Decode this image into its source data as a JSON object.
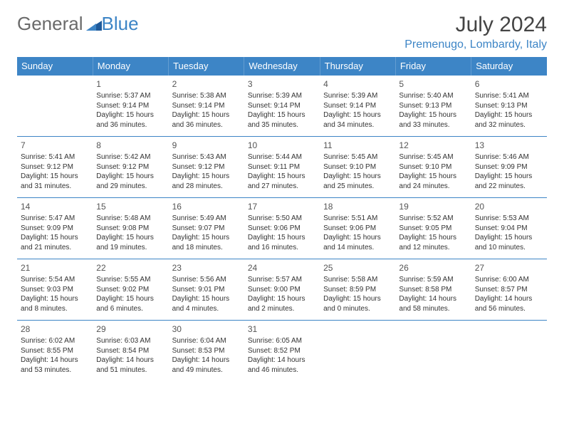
{
  "logo": {
    "text1": "General",
    "text2": "Blue",
    "text1_color": "#6a6a6a",
    "text2_color": "#3d85c6",
    "triangle_color": "#1f5a9a"
  },
  "title": "July 2024",
  "location": "Premenugo, Lombardy, Italy",
  "colors": {
    "header_bg": "#3d85c6",
    "header_text": "#ffffff",
    "border": "#3d85c6"
  },
  "day_headers": [
    "Sunday",
    "Monday",
    "Tuesday",
    "Wednesday",
    "Thursday",
    "Friday",
    "Saturday"
  ],
  "weeks": [
    [
      null,
      {
        "n": "1",
        "sr": "Sunrise: 5:37 AM",
        "ss": "Sunset: 9:14 PM",
        "dl": "Daylight: 15 hours and 36 minutes."
      },
      {
        "n": "2",
        "sr": "Sunrise: 5:38 AM",
        "ss": "Sunset: 9:14 PM",
        "dl": "Daylight: 15 hours and 36 minutes."
      },
      {
        "n": "3",
        "sr": "Sunrise: 5:39 AM",
        "ss": "Sunset: 9:14 PM",
        "dl": "Daylight: 15 hours and 35 minutes."
      },
      {
        "n": "4",
        "sr": "Sunrise: 5:39 AM",
        "ss": "Sunset: 9:14 PM",
        "dl": "Daylight: 15 hours and 34 minutes."
      },
      {
        "n": "5",
        "sr": "Sunrise: 5:40 AM",
        "ss": "Sunset: 9:13 PM",
        "dl": "Daylight: 15 hours and 33 minutes."
      },
      {
        "n": "6",
        "sr": "Sunrise: 5:41 AM",
        "ss": "Sunset: 9:13 PM",
        "dl": "Daylight: 15 hours and 32 minutes."
      }
    ],
    [
      {
        "n": "7",
        "sr": "Sunrise: 5:41 AM",
        "ss": "Sunset: 9:12 PM",
        "dl": "Daylight: 15 hours and 31 minutes."
      },
      {
        "n": "8",
        "sr": "Sunrise: 5:42 AM",
        "ss": "Sunset: 9:12 PM",
        "dl": "Daylight: 15 hours and 29 minutes."
      },
      {
        "n": "9",
        "sr": "Sunrise: 5:43 AM",
        "ss": "Sunset: 9:12 PM",
        "dl": "Daylight: 15 hours and 28 minutes."
      },
      {
        "n": "10",
        "sr": "Sunrise: 5:44 AM",
        "ss": "Sunset: 9:11 PM",
        "dl": "Daylight: 15 hours and 27 minutes."
      },
      {
        "n": "11",
        "sr": "Sunrise: 5:45 AM",
        "ss": "Sunset: 9:10 PM",
        "dl": "Daylight: 15 hours and 25 minutes."
      },
      {
        "n": "12",
        "sr": "Sunrise: 5:45 AM",
        "ss": "Sunset: 9:10 PM",
        "dl": "Daylight: 15 hours and 24 minutes."
      },
      {
        "n": "13",
        "sr": "Sunrise: 5:46 AM",
        "ss": "Sunset: 9:09 PM",
        "dl": "Daylight: 15 hours and 22 minutes."
      }
    ],
    [
      {
        "n": "14",
        "sr": "Sunrise: 5:47 AM",
        "ss": "Sunset: 9:09 PM",
        "dl": "Daylight: 15 hours and 21 minutes."
      },
      {
        "n": "15",
        "sr": "Sunrise: 5:48 AM",
        "ss": "Sunset: 9:08 PM",
        "dl": "Daylight: 15 hours and 19 minutes."
      },
      {
        "n": "16",
        "sr": "Sunrise: 5:49 AM",
        "ss": "Sunset: 9:07 PM",
        "dl": "Daylight: 15 hours and 18 minutes."
      },
      {
        "n": "17",
        "sr": "Sunrise: 5:50 AM",
        "ss": "Sunset: 9:06 PM",
        "dl": "Daylight: 15 hours and 16 minutes."
      },
      {
        "n": "18",
        "sr": "Sunrise: 5:51 AM",
        "ss": "Sunset: 9:06 PM",
        "dl": "Daylight: 15 hours and 14 minutes."
      },
      {
        "n": "19",
        "sr": "Sunrise: 5:52 AM",
        "ss": "Sunset: 9:05 PM",
        "dl": "Daylight: 15 hours and 12 minutes."
      },
      {
        "n": "20",
        "sr": "Sunrise: 5:53 AM",
        "ss": "Sunset: 9:04 PM",
        "dl": "Daylight: 15 hours and 10 minutes."
      }
    ],
    [
      {
        "n": "21",
        "sr": "Sunrise: 5:54 AM",
        "ss": "Sunset: 9:03 PM",
        "dl": "Daylight: 15 hours and 8 minutes."
      },
      {
        "n": "22",
        "sr": "Sunrise: 5:55 AM",
        "ss": "Sunset: 9:02 PM",
        "dl": "Daylight: 15 hours and 6 minutes."
      },
      {
        "n": "23",
        "sr": "Sunrise: 5:56 AM",
        "ss": "Sunset: 9:01 PM",
        "dl": "Daylight: 15 hours and 4 minutes."
      },
      {
        "n": "24",
        "sr": "Sunrise: 5:57 AM",
        "ss": "Sunset: 9:00 PM",
        "dl": "Daylight: 15 hours and 2 minutes."
      },
      {
        "n": "25",
        "sr": "Sunrise: 5:58 AM",
        "ss": "Sunset: 8:59 PM",
        "dl": "Daylight: 15 hours and 0 minutes."
      },
      {
        "n": "26",
        "sr": "Sunrise: 5:59 AM",
        "ss": "Sunset: 8:58 PM",
        "dl": "Daylight: 14 hours and 58 minutes."
      },
      {
        "n": "27",
        "sr": "Sunrise: 6:00 AM",
        "ss": "Sunset: 8:57 PM",
        "dl": "Daylight: 14 hours and 56 minutes."
      }
    ],
    [
      {
        "n": "28",
        "sr": "Sunrise: 6:02 AM",
        "ss": "Sunset: 8:55 PM",
        "dl": "Daylight: 14 hours and 53 minutes."
      },
      {
        "n": "29",
        "sr": "Sunrise: 6:03 AM",
        "ss": "Sunset: 8:54 PM",
        "dl": "Daylight: 14 hours and 51 minutes."
      },
      {
        "n": "30",
        "sr": "Sunrise: 6:04 AM",
        "ss": "Sunset: 8:53 PM",
        "dl": "Daylight: 14 hours and 49 minutes."
      },
      {
        "n": "31",
        "sr": "Sunrise: 6:05 AM",
        "ss": "Sunset: 8:52 PM",
        "dl": "Daylight: 14 hours and 46 minutes."
      },
      null,
      null,
      null
    ]
  ]
}
